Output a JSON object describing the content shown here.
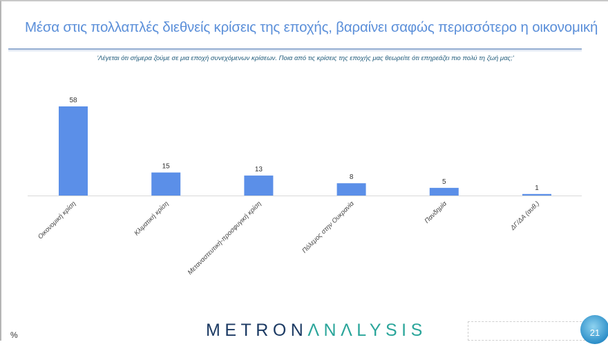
{
  "header": {
    "title": "Μέσα στις πολλαπλές διεθνείς κρίσεις της εποχής, βαραίνει σαφώς περισσότερο η οικονομική"
  },
  "chart_data": {
    "type": "bar",
    "subtitle": "'Λέγεται ότι σήμερα ζούμε σε μια εποχή συνεχόμενων κρίσεων. Ποια από τις κρίσεις της εποχής μας θεωρείτε ότι επηρεάζει πιο πολύ τη ζωή μας;'",
    "categories": [
      "Οικονομική κρίση",
      "Κλιματική κρίση",
      "Μεταναστευτική-προσφυγική κρίση",
      "Πόλεμος στην Ουκρανία",
      "Πανδημία",
      "ΔΓ/ΔΑ (αυθ.)"
    ],
    "values": [
      58,
      15,
      13,
      8,
      5,
      1
    ],
    "unit_label": "%",
    "bar_color": "#5b8fe8",
    "grid": false,
    "data_labels": true
  },
  "footer": {
    "logo_part1": "METRON",
    "logo_part2": "ΛNΛLYSIS",
    "page_number": "21"
  }
}
